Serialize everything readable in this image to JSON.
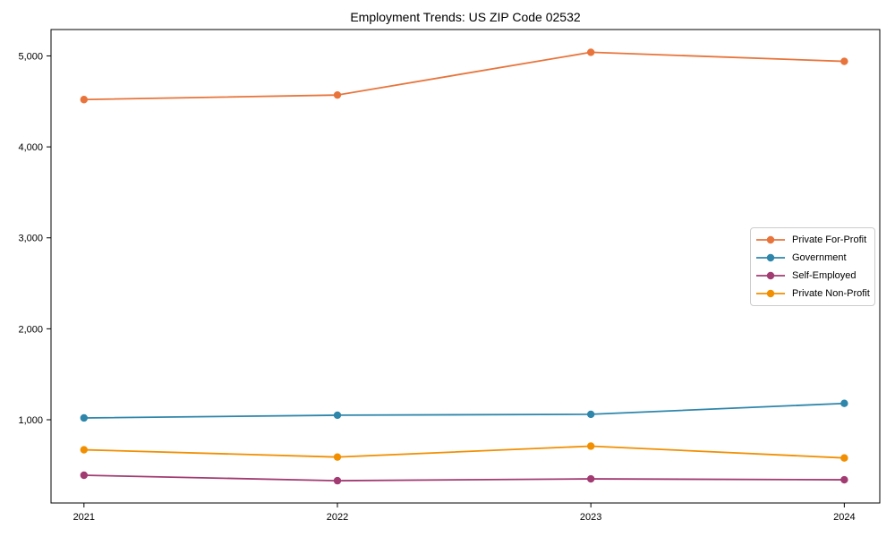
{
  "chart_data": {
    "type": "line",
    "title": "Employment Trends: US ZIP Code 02532",
    "xlabel": "",
    "ylabel": "",
    "x": [
      2021,
      2022,
      2023,
      2024
    ],
    "x_tick_labels": [
      "2021",
      "2022",
      "2023",
      "2024"
    ],
    "y_ticks": [
      1000,
      2000,
      3000,
      4000,
      5000
    ],
    "y_tick_labels": [
      "1,000",
      "2,000",
      "3,000",
      "4,000",
      "5,000"
    ],
    "xlim": [
      2020.87,
      2024.14
    ],
    "ylim": [
      85,
      5290
    ],
    "grid": false,
    "legend_position": "center right",
    "marker": "circle",
    "series": [
      {
        "name": "Private For-Profit",
        "color": "#E8743B",
        "values": [
          4520,
          4570,
          5040,
          4940
        ]
      },
      {
        "name": "Government",
        "color": "#2E86AB",
        "values": [
          1020,
          1050,
          1060,
          1180
        ]
      },
      {
        "name": "Self-Employed",
        "color": "#A23B72",
        "values": [
          390,
          330,
          350,
          340
        ]
      },
      {
        "name": "Private Non-Profit",
        "color": "#F18F01",
        "values": [
          670,
          590,
          710,
          580
        ]
      }
    ]
  }
}
